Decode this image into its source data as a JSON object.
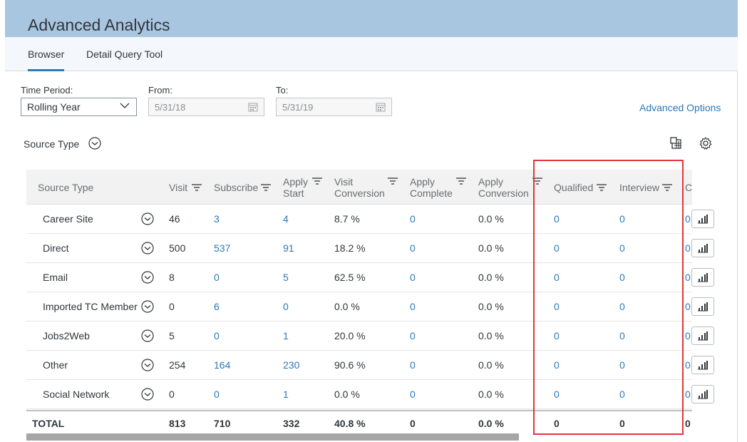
{
  "app": {
    "title": "Advanced Analytics"
  },
  "tabs": [
    {
      "label": "Browser",
      "active": true
    },
    {
      "label": "Detail Query Tool",
      "active": false
    }
  ],
  "filters": {
    "time_period_label": "Time Period:",
    "time_period_value": "Rolling Year",
    "from_label": "From:",
    "from_value": "5/31/18",
    "to_label": "To:",
    "to_value": "5/31/19",
    "advanced_options": "Advanced Options"
  },
  "group_by": {
    "label": "Source Type"
  },
  "table": {
    "columns": {
      "source_type": "Source Type",
      "visit": "Visit",
      "subscribe": "Subscribe",
      "apply_start_1": "Apply",
      "apply_start_2": "Start",
      "visit_conv_1": "Visit",
      "visit_conv_2": "Conversion",
      "apply_complete_1": "Apply",
      "apply_complete_2": "Complete",
      "apply_conv_1": "Apply",
      "apply_conv_2": "Conversion",
      "qualified": "Qualified",
      "interview": "Interview",
      "next_col": "C"
    },
    "rows": [
      {
        "source": "Career Site",
        "visit": "46",
        "subscribe": "3",
        "apply_start": "4",
        "visit_conv": "8.7 %",
        "apply_complete": "0",
        "apply_conv": "0.0 %",
        "qualified": "0",
        "interview": "0",
        "next": "0"
      },
      {
        "source": "Direct",
        "visit": "500",
        "subscribe": "537",
        "apply_start": "91",
        "visit_conv": "18.2 %",
        "apply_complete": "0",
        "apply_conv": "0.0 %",
        "qualified": "0",
        "interview": "0",
        "next": "0"
      },
      {
        "source": "Email",
        "visit": "8",
        "subscribe": "0",
        "apply_start": "5",
        "visit_conv": "62.5 %",
        "apply_complete": "0",
        "apply_conv": "0.0 %",
        "qualified": "0",
        "interview": "0",
        "next": "0"
      },
      {
        "source": "Imported TC Member",
        "visit": "0",
        "subscribe": "6",
        "apply_start": "0",
        "visit_conv": "0.0 %",
        "apply_complete": "0",
        "apply_conv": "0.0 %",
        "qualified": "0",
        "interview": "0",
        "next": "0"
      },
      {
        "source": "Jobs2Web",
        "visit": "5",
        "subscribe": "0",
        "apply_start": "1",
        "visit_conv": "20.0 %",
        "apply_complete": "0",
        "apply_conv": "0.0 %",
        "qualified": "0",
        "interview": "0",
        "next": "0"
      },
      {
        "source": "Other",
        "visit": "254",
        "subscribe": "164",
        "apply_start": "230",
        "visit_conv": "90.6 %",
        "apply_complete": "0",
        "apply_conv": "0.0 %",
        "qualified": "0",
        "interview": "0",
        "next": "0"
      },
      {
        "source": "Social Network",
        "visit": "0",
        "subscribe": "0",
        "apply_start": "1",
        "visit_conv": "0.0 %",
        "apply_complete": "0",
        "apply_conv": "0.0 %",
        "qualified": "0",
        "interview": "0",
        "next": "0"
      }
    ],
    "total": {
      "label": "TOTAL",
      "visit": "813",
      "subscribe": "710",
      "apply_start": "332",
      "visit_conv": "40.8 %",
      "apply_complete": "0",
      "apply_conv": "0.0 %",
      "qualified": "0",
      "interview": "0",
      "next": "0"
    }
  },
  "colors": {
    "header": "#a9c6e1",
    "link": "#2a7ab8",
    "highlight": "#e2353a"
  },
  "icons": [
    "chevron-down-icon",
    "calendar-icon",
    "export-icon",
    "settings-icon",
    "sort-icon",
    "bar-chart-icon"
  ]
}
